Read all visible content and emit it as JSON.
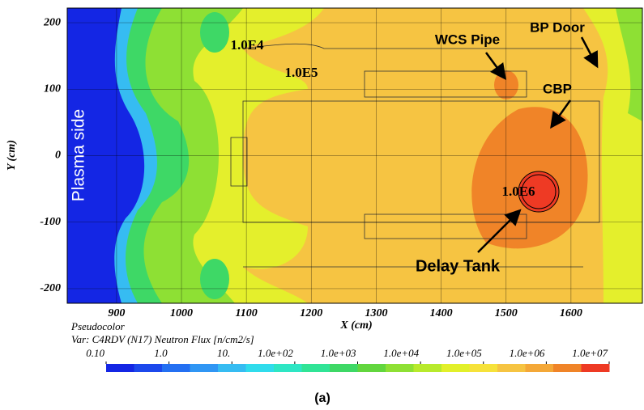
{
  "chart_data": {
    "type": "pseudocolor",
    "xlabel": "X (cm)",
    "ylabel": "Y (cm)",
    "xlim": [
      824,
      1710
    ],
    "ylim": [
      -222,
      222
    ],
    "xticks": [
      900,
      1000,
      1100,
      1200,
      1300,
      1400,
      1500,
      1600
    ],
    "yticks": [
      -200,
      -100,
      0,
      100,
      200
    ],
    "grid": true,
    "annotations": [
      "Plasma side",
      "1.0E4",
      "1.0E5",
      "WCS Pipe",
      "BP Door",
      "CBP",
      "1.0E6",
      "Delay Tank"
    ],
    "colorbar": {
      "title": "Pseudocolor",
      "variable": "Var: C4RDV (N17) Neutron Flux [n/cm2/s]",
      "log": true,
      "lim": [
        0.1,
        10000000
      ],
      "ticks": [
        {
          "value": 0.1,
          "label": "0.10"
        },
        {
          "value": 1,
          "label": "1.0"
        },
        {
          "value": 10,
          "label": "10."
        },
        {
          "value": 100,
          "label": "1.0e+02"
        },
        {
          "value": 1000,
          "label": "1.0e+03"
        },
        {
          "value": 10000,
          "label": "1.0e+04"
        },
        {
          "value": 100000,
          "label": "1.0e+05"
        },
        {
          "value": 1000000,
          "label": "1.0e+06"
        },
        {
          "value": 10000000,
          "label": "1.0e+07"
        }
      ],
      "colors": [
        "#1426e4",
        "#1c48ec",
        "#2470f2",
        "#3096f4",
        "#36bcf2",
        "#30dcec",
        "#2ee6c4",
        "#30e496",
        "#3ed866",
        "#62d63e",
        "#8ee034",
        "#b8ea2c",
        "#e2f02a",
        "#f6e23a",
        "#f6c442",
        "#f4a838",
        "#f08428",
        "#ee3a24"
      ]
    },
    "caption": "(a)"
  }
}
